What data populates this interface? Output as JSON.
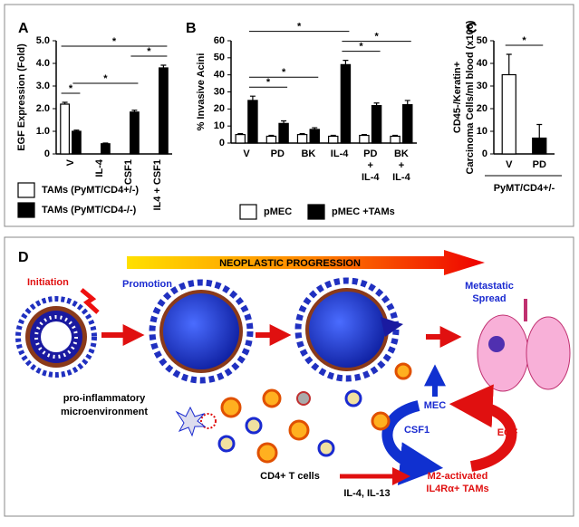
{
  "chart_data": [
    {
      "type": "bar",
      "panel": "A",
      "ylabel": "EGF Expression (Fold)",
      "categories": [
        "V",
        "IL-4",
        "CSF1",
        "IL4 + CSF1"
      ],
      "series": [
        {
          "name": "TAMs (PyMT/CD4+/-)",
          "color": "#ffffff",
          "values": [
            2.2,
            null,
            null,
            null
          ],
          "errors": [
            0.08,
            null,
            null,
            null
          ]
        },
        {
          "name": "TAMs (PyMT/CD4-/-)",
          "color": "#000000",
          "values": [
            1.0,
            0.45,
            1.85,
            3.8
          ],
          "errors": [
            0.05,
            0.03,
            0.08,
            0.12
          ]
        }
      ],
      "ylim": [
        0,
        5
      ],
      "yticks": [
        0,
        {
          "value": 1,
          "label": "1.0"
        },
        {
          "value": 2,
          "label": "2.0"
        },
        {
          "value": 3,
          "label": "3.0"
        },
        {
          "value": 4,
          "label": "4.0"
        },
        {
          "value": 5,
          "label": "5.0"
        }
      ],
      "grid": false,
      "legend": "bottom",
      "significance": [
        {
          "from": [
            0,
            0
          ],
          "to": [
            0,
            1
          ],
          "label": "*"
        },
        {
          "from": [
            0,
            1
          ],
          "to": [
            2,
            1
          ],
          "label": "*"
        },
        {
          "from": [
            3,
            1
          ],
          "to": [
            2,
            1
          ],
          "label": "*"
        },
        {
          "from": [
            0,
            0
          ],
          "to": [
            3,
            1
          ],
          "label": "*"
        }
      ]
    },
    {
      "type": "bar",
      "panel": "B",
      "ylabel": "% Invasive Acini",
      "categories": [
        "V",
        "PD",
        "BK",
        "IL-4",
        "PD + IL-4",
        "BK + IL-4"
      ],
      "series": [
        {
          "name": "pMEC",
          "color": "#ffffff",
          "values": [
            5,
            4,
            5,
            4,
            4.5,
            4
          ],
          "errors": [
            0.5,
            0.5,
            0.5,
            0.5,
            0.5,
            0.5
          ]
        },
        {
          "name": "pMEC +TAMs",
          "color": "#000000",
          "values": [
            25,
            11.5,
            8,
            46,
            22,
            22.5
          ],
          "errors": [
            2.5,
            1.5,
            1,
            2.5,
            1.5,
            2.5
          ]
        }
      ],
      "ylim": [
        0,
        60
      ],
      "yticks": [
        0,
        10,
        20,
        30,
        40,
        50,
        60
      ],
      "grid": false,
      "legend": "bottom",
      "significance": [
        {
          "from": [
            0,
            1
          ],
          "to": [
            1,
            1
          ],
          "label": "*"
        },
        {
          "from": [
            0,
            1
          ],
          "to": [
            2,
            1
          ],
          "label": "*"
        },
        {
          "from": [
            3,
            1
          ],
          "to": [
            4,
            1
          ],
          "label": "*"
        },
        {
          "from": [
            3,
            1
          ],
          "to": [
            5,
            1
          ],
          "label": "*"
        },
        {
          "from": [
            0,
            1
          ],
          "to": [
            3,
            1
          ],
          "label": "*"
        }
      ]
    },
    {
      "type": "bar",
      "panel": "C",
      "ylabel": [
        "CD45-/Keratin+",
        "Carcinoma Cells/ml blood (x100)"
      ],
      "categories": [
        "V",
        "PD"
      ],
      "group_label": "PyMT/CD4+/-",
      "series": [
        {
          "colors": [
            "#ffffff",
            "#000000"
          ],
          "values": [
            35,
            7
          ],
          "errors": [
            9,
            6
          ]
        }
      ],
      "ylim": [
        0,
        50
      ],
      "yticks": [
        0,
        10,
        20,
        30,
        40,
        50
      ],
      "grid": false,
      "significance": [
        {
          "from": [
            0,
            0
          ],
          "to": [
            1,
            0
          ],
          "label": "*"
        }
      ]
    }
  ],
  "diagram": {
    "panel": "D",
    "progression": "NEOPLASTIC PROGRESSION",
    "initiation": "Initiation",
    "promotion": "Promotion",
    "metastatic": [
      "Metastatic",
      "Spread"
    ],
    "microenvironment": [
      "pro-inflammatory",
      "microenvironment"
    ],
    "mec": "MEC",
    "csf1": "CSF1",
    "egf": "EGF",
    "tcells": "CD4+ T cells",
    "cytokines": "IL-4, IL-13",
    "tams": [
      "M2-activated",
      "IL4Rα+ TAMs"
    ]
  }
}
